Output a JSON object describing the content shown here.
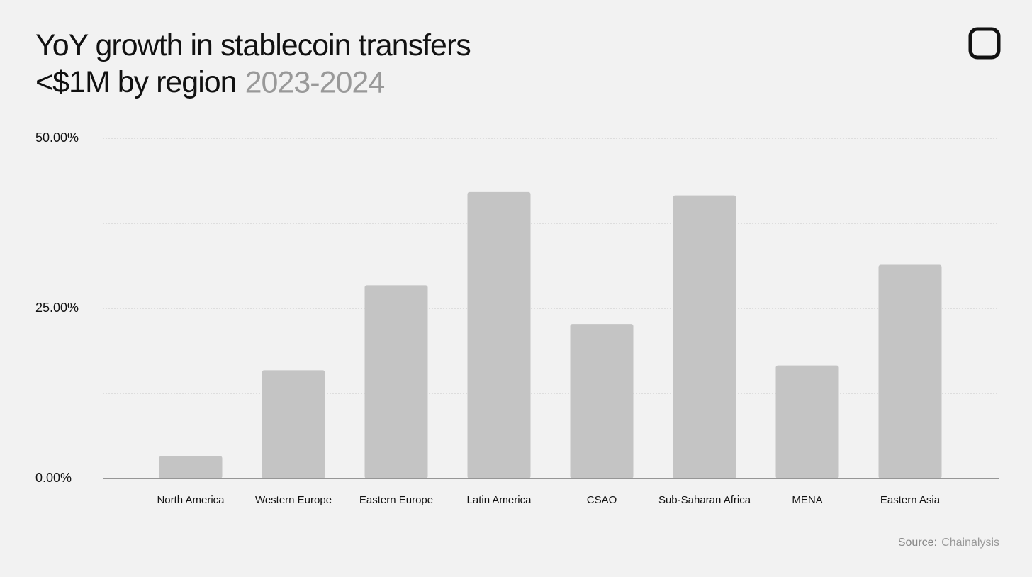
{
  "chart_data": {
    "type": "bar",
    "title": "YoY growth in stablecoin transfers <$1M by region",
    "title_suffix": "2023-2024",
    "source_label": "Source:",
    "source": "Chainalysis",
    "categories": [
      "North America",
      "Western Europe",
      "Eastern Europe",
      "Latin America",
      "CSAO",
      "Sub-Saharan Africa",
      "MENA",
      "Eastern Asia"
    ],
    "values": [
      3.3,
      15.9,
      28.4,
      42.1,
      22.7,
      41.6,
      16.6,
      31.4
    ],
    "color": "#c4c4c4",
    "ylim": [
      0,
      50
    ],
    "yticks": [
      {
        "value": 0,
        "label": "0.00%"
      },
      {
        "value": 12.5,
        "label": null
      },
      {
        "value": 25,
        "label": "25.00%"
      },
      {
        "value": 37.5,
        "label": null
      },
      {
        "value": 50,
        "label": "50.00%"
      }
    ],
    "grid": true
  }
}
